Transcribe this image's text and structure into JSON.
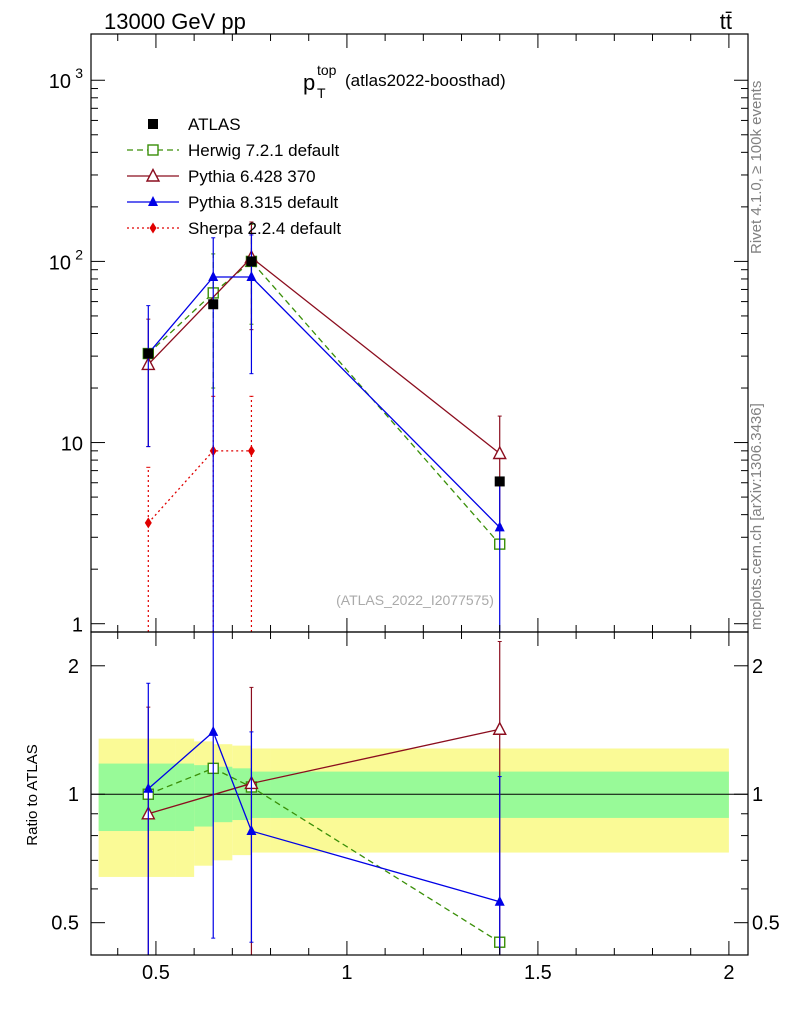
{
  "header": {
    "left": "13000 GeV pp",
    "right": "tt̄"
  },
  "side_labels": {
    "upper": "Rivet 4.1.0, ≥ 100k events",
    "lower": "mcplots.cern.ch [arXiv:1306.3436]"
  },
  "watermark": "(ATLAS_2022_I2077575)",
  "plot_title": {
    "main": "p",
    "sup": "top",
    "sub": "T",
    "extra": "(atlas2022-boosthad)"
  },
  "ratio_ylabel": "Ratio to ATLAS",
  "colors": {
    "atlas": "#000000",
    "herwig": "#3a8f08",
    "pythia6": "#8b0d1e",
    "pythia8": "#0000e6",
    "sherpa": "#e00000",
    "band_inner": "#98fa98",
    "band_outer": "#fafa96"
  },
  "chart_data": {
    "type": "scatter",
    "x_range": [
      0.33,
      2.05
    ],
    "main_ylog": true,
    "main_ylim": [
      0.9,
      1800
    ],
    "main_yticks": [
      {
        "value": 1,
        "label": "1"
      },
      {
        "value": 10,
        "label": "10"
      },
      {
        "value": 100,
        "label": "10",
        "exp": "2"
      },
      {
        "value": 1000,
        "label": "10",
        "exp": "3"
      }
    ],
    "ratio_ylim": [
      0.42,
      2.4
    ],
    "ratio_yticks": [
      {
        "value": 0.5,
        "label": "0.5"
      },
      {
        "value": 1,
        "label": "1"
      },
      {
        "value": 2,
        "label": "2"
      }
    ],
    "xticks": [
      {
        "value": 0.5,
        "label": "0.5"
      },
      {
        "value": 1,
        "label": "1"
      },
      {
        "value": 1.5,
        "label": "1.5"
      },
      {
        "value": 2,
        "label": "2"
      }
    ],
    "series": [
      {
        "name": "ATLAS",
        "style": "data",
        "color": "#000000",
        "marker": "square-filled",
        "points": [
          {
            "x": 0.48,
            "y": 31
          },
          {
            "x": 0.65,
            "y": 58
          },
          {
            "x": 0.75,
            "y": 100
          },
          {
            "x": 1.4,
            "y": 6.1
          }
        ]
      },
      {
        "name": "Herwig 7.2.1 default",
        "style": "mc",
        "color": "#3a8f08",
        "marker": "square-open",
        "dash": "6,4",
        "points": [
          {
            "x": 0.48,
            "y": 31
          },
          {
            "x": 0.65,
            "y": 67,
            "ylo": 20,
            "yhi": 110
          },
          {
            "x": 0.75,
            "y": 100,
            "ylo": 45,
            "yhi": 160
          },
          {
            "x": 1.4,
            "y": 2.75
          }
        ],
        "ratio": [
          {
            "x": 0.48,
            "y": 1.0
          },
          {
            "x": 0.65,
            "y": 1.15
          },
          {
            "x": 0.75,
            "y": 1.04
          },
          {
            "x": 1.4,
            "y": 0.45
          }
        ]
      },
      {
        "name": "Pythia 6.428 370",
        "style": "mc",
        "color": "#8b0d1e",
        "marker": "triangle-open",
        "dash": "",
        "points": [
          {
            "x": 0.48,
            "y": 27,
            "ylo": 9.5,
            "yhi": 48
          },
          {
            "x": 0.75,
            "y": 105,
            "ylo": 42,
            "yhi": 165
          },
          {
            "x": 1.4,
            "y": 8.7,
            "ylo": 3.5,
            "yhi": 14
          }
        ],
        "ratio": [
          {
            "x": 0.48,
            "y": 0.9,
            "ylo": 0.42,
            "yhi": 1.6
          },
          {
            "x": 0.75,
            "y": 1.06,
            "ylo": 0.42,
            "yhi": 1.78
          },
          {
            "x": 1.4,
            "y": 1.42,
            "ylo": 0.42,
            "yhi": 2.28
          }
        ]
      },
      {
        "name": "Pythia 8.315 default",
        "style": "mc",
        "color": "#0000e6",
        "marker": "triangle-filled",
        "dash": "",
        "points": [
          {
            "x": 0.48,
            "y": 31,
            "ylo": 9.5,
            "yhi": 57
          },
          {
            "x": 0.65,
            "y": 82,
            "ylo": 0.9,
            "yhi": 135
          },
          {
            "x": 0.75,
            "y": 82,
            "ylo": 24,
            "yhi": 140
          },
          {
            "x": 1.4,
            "y": 3.4,
            "ylo": 0.9,
            "yhi": 6.3
          }
        ],
        "ratio": [
          {
            "x": 0.48,
            "y": 1.03,
            "ylo": 0.42,
            "yhi": 1.82
          },
          {
            "x": 0.65,
            "y": 1.4,
            "ylo": 0.46,
            "yhi": 2.4
          },
          {
            "x": 0.75,
            "y": 0.82,
            "ylo": 0.45,
            "yhi": 1.4
          },
          {
            "x": 1.4,
            "y": 0.56,
            "ylo": 0.42,
            "yhi": 1.1
          }
        ]
      },
      {
        "name": "Sherpa 2.2.4 default",
        "style": "mc",
        "color": "#e00000",
        "marker": "diamond-filled",
        "dash": "2,3",
        "points": [
          {
            "x": 0.48,
            "y": 3.6,
            "ylo": 0.9,
            "yhi": 7.3
          },
          {
            "x": 0.65,
            "y": 9,
            "ylo": 0.9,
            "yhi": 18
          },
          {
            "x": 0.75,
            "y": 9,
            "ylo": 0.9,
            "yhi": 18
          }
        ],
        "ratio": []
      }
    ],
    "ratio_band": {
      "edges": [
        0.35,
        0.55,
        0.6,
        0.65,
        0.7,
        0.75,
        0.8,
        2.0
      ],
      "inner": [
        [
          0.82,
          1.18
        ],
        [
          0.82,
          1.18
        ],
        [
          0.84,
          1.17
        ],
        [
          0.86,
          1.16
        ],
        [
          0.87,
          1.15
        ],
        [
          0.88,
          1.13
        ],
        [
          0.88,
          1.13
        ]
      ],
      "outer": [
        [
          0.64,
          1.35
        ],
        [
          0.64,
          1.35
        ],
        [
          0.68,
          1.33
        ],
        [
          0.7,
          1.31
        ],
        [
          0.72,
          1.3
        ],
        [
          0.73,
          1.28
        ],
        [
          0.73,
          1.28
        ]
      ]
    }
  }
}
